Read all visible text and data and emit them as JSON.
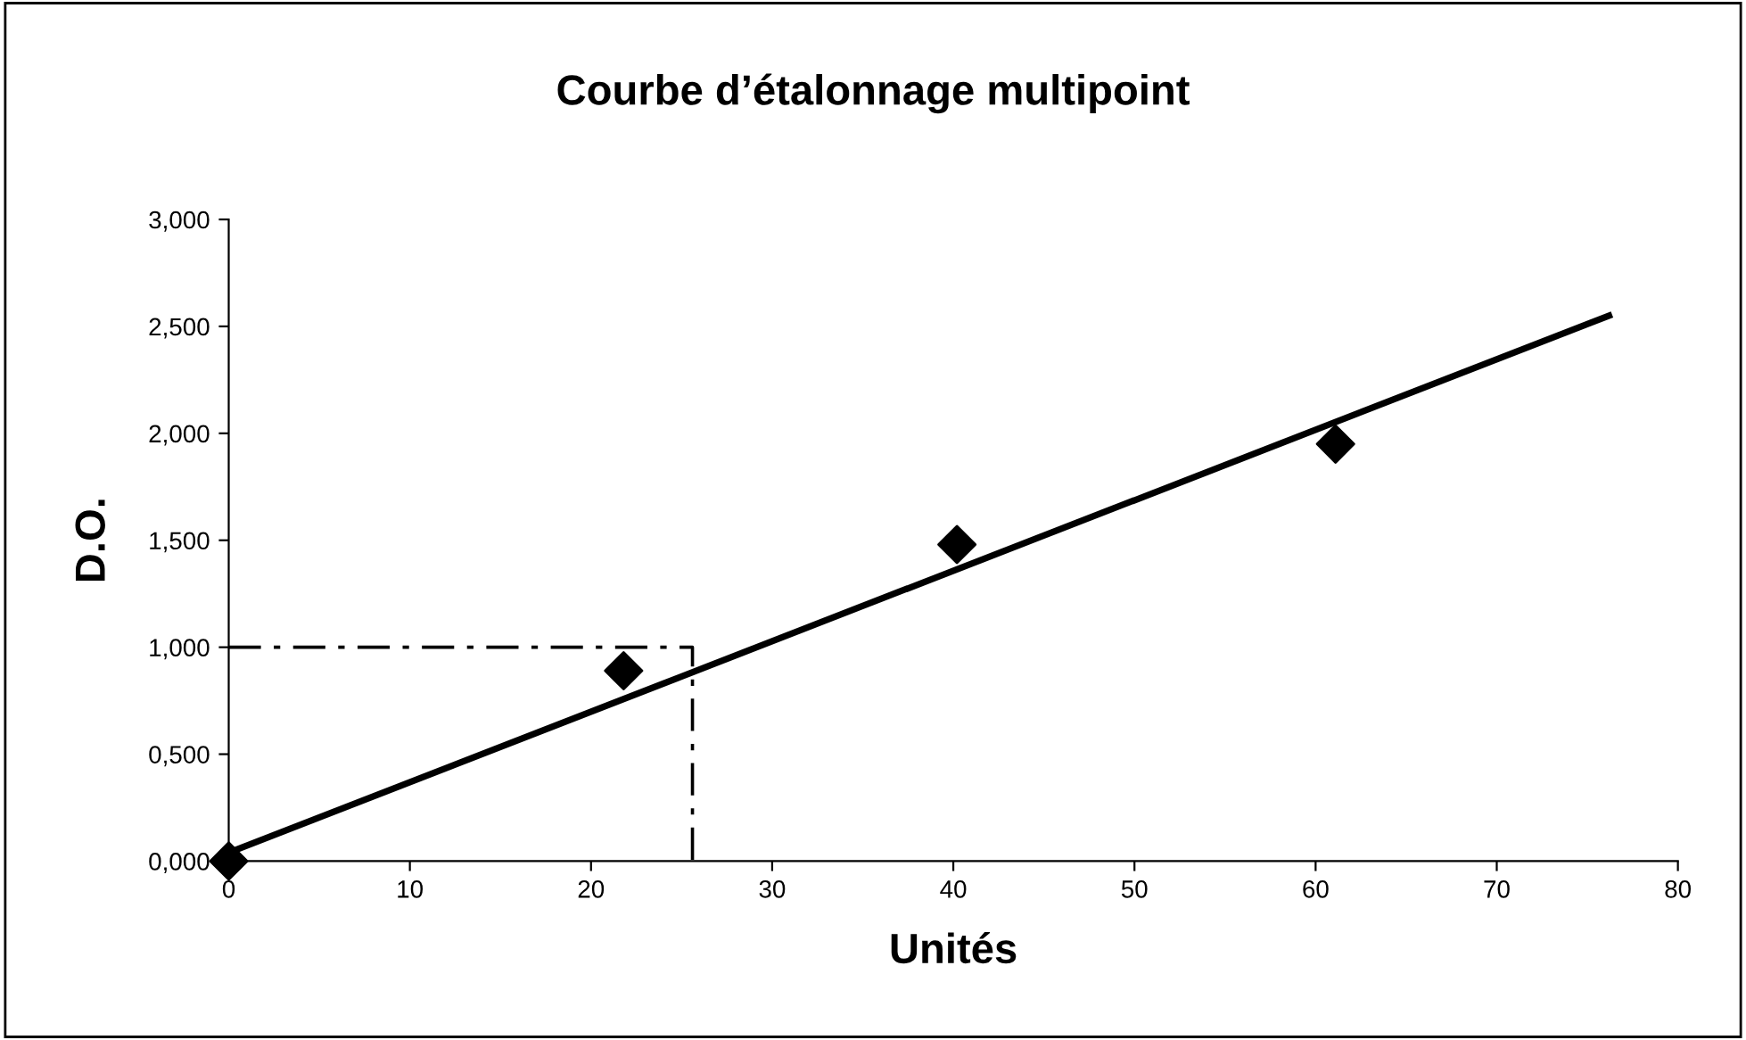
{
  "chart_data": {
    "type": "scatter",
    "title": "Courbe d’étalonnage multipoint",
    "xlabel": "Unités",
    "ylabel": "D.O.",
    "xlim": [
      0,
      80
    ],
    "xticks": [
      0,
      10,
      20,
      30,
      40,
      50,
      60,
      70,
      80
    ],
    "ylim": [
      0,
      3
    ],
    "yticks": [
      {
        "value": 0,
        "label": "0,000"
      },
      {
        "value": 0.5,
        "label": "0,500"
      },
      {
        "value": 1,
        "label": "1,000"
      },
      {
        "value": 1.5,
        "label": "1,500"
      },
      {
        "value": 2,
        "label": "2,000"
      },
      {
        "value": 2.5,
        "label": "2,500"
      },
      {
        "value": 3,
        "label": "3,000"
      }
    ],
    "grid": false,
    "legend": false,
    "series": [
      {
        "marker": "diamond",
        "color": "#000000",
        "x": [
          0,
          21.8,
          40.2,
          61.1
        ],
        "values": [
          0,
          0.89,
          1.48,
          1.95
        ]
      },
      {
        "type": "line",
        "marker": "none",
        "line_style": "solid",
        "color": "#000000",
        "x": [
          0,
          76.2
        ],
        "values": [
          0.04,
          2.55
        ]
      },
      {
        "type": "line",
        "marker": "none",
        "line_style": "dashdot",
        "color": "#000000",
        "x": [
          0,
          25.6,
          25.6
        ],
        "values": [
          1,
          1,
          0
        ]
      }
    ]
  }
}
